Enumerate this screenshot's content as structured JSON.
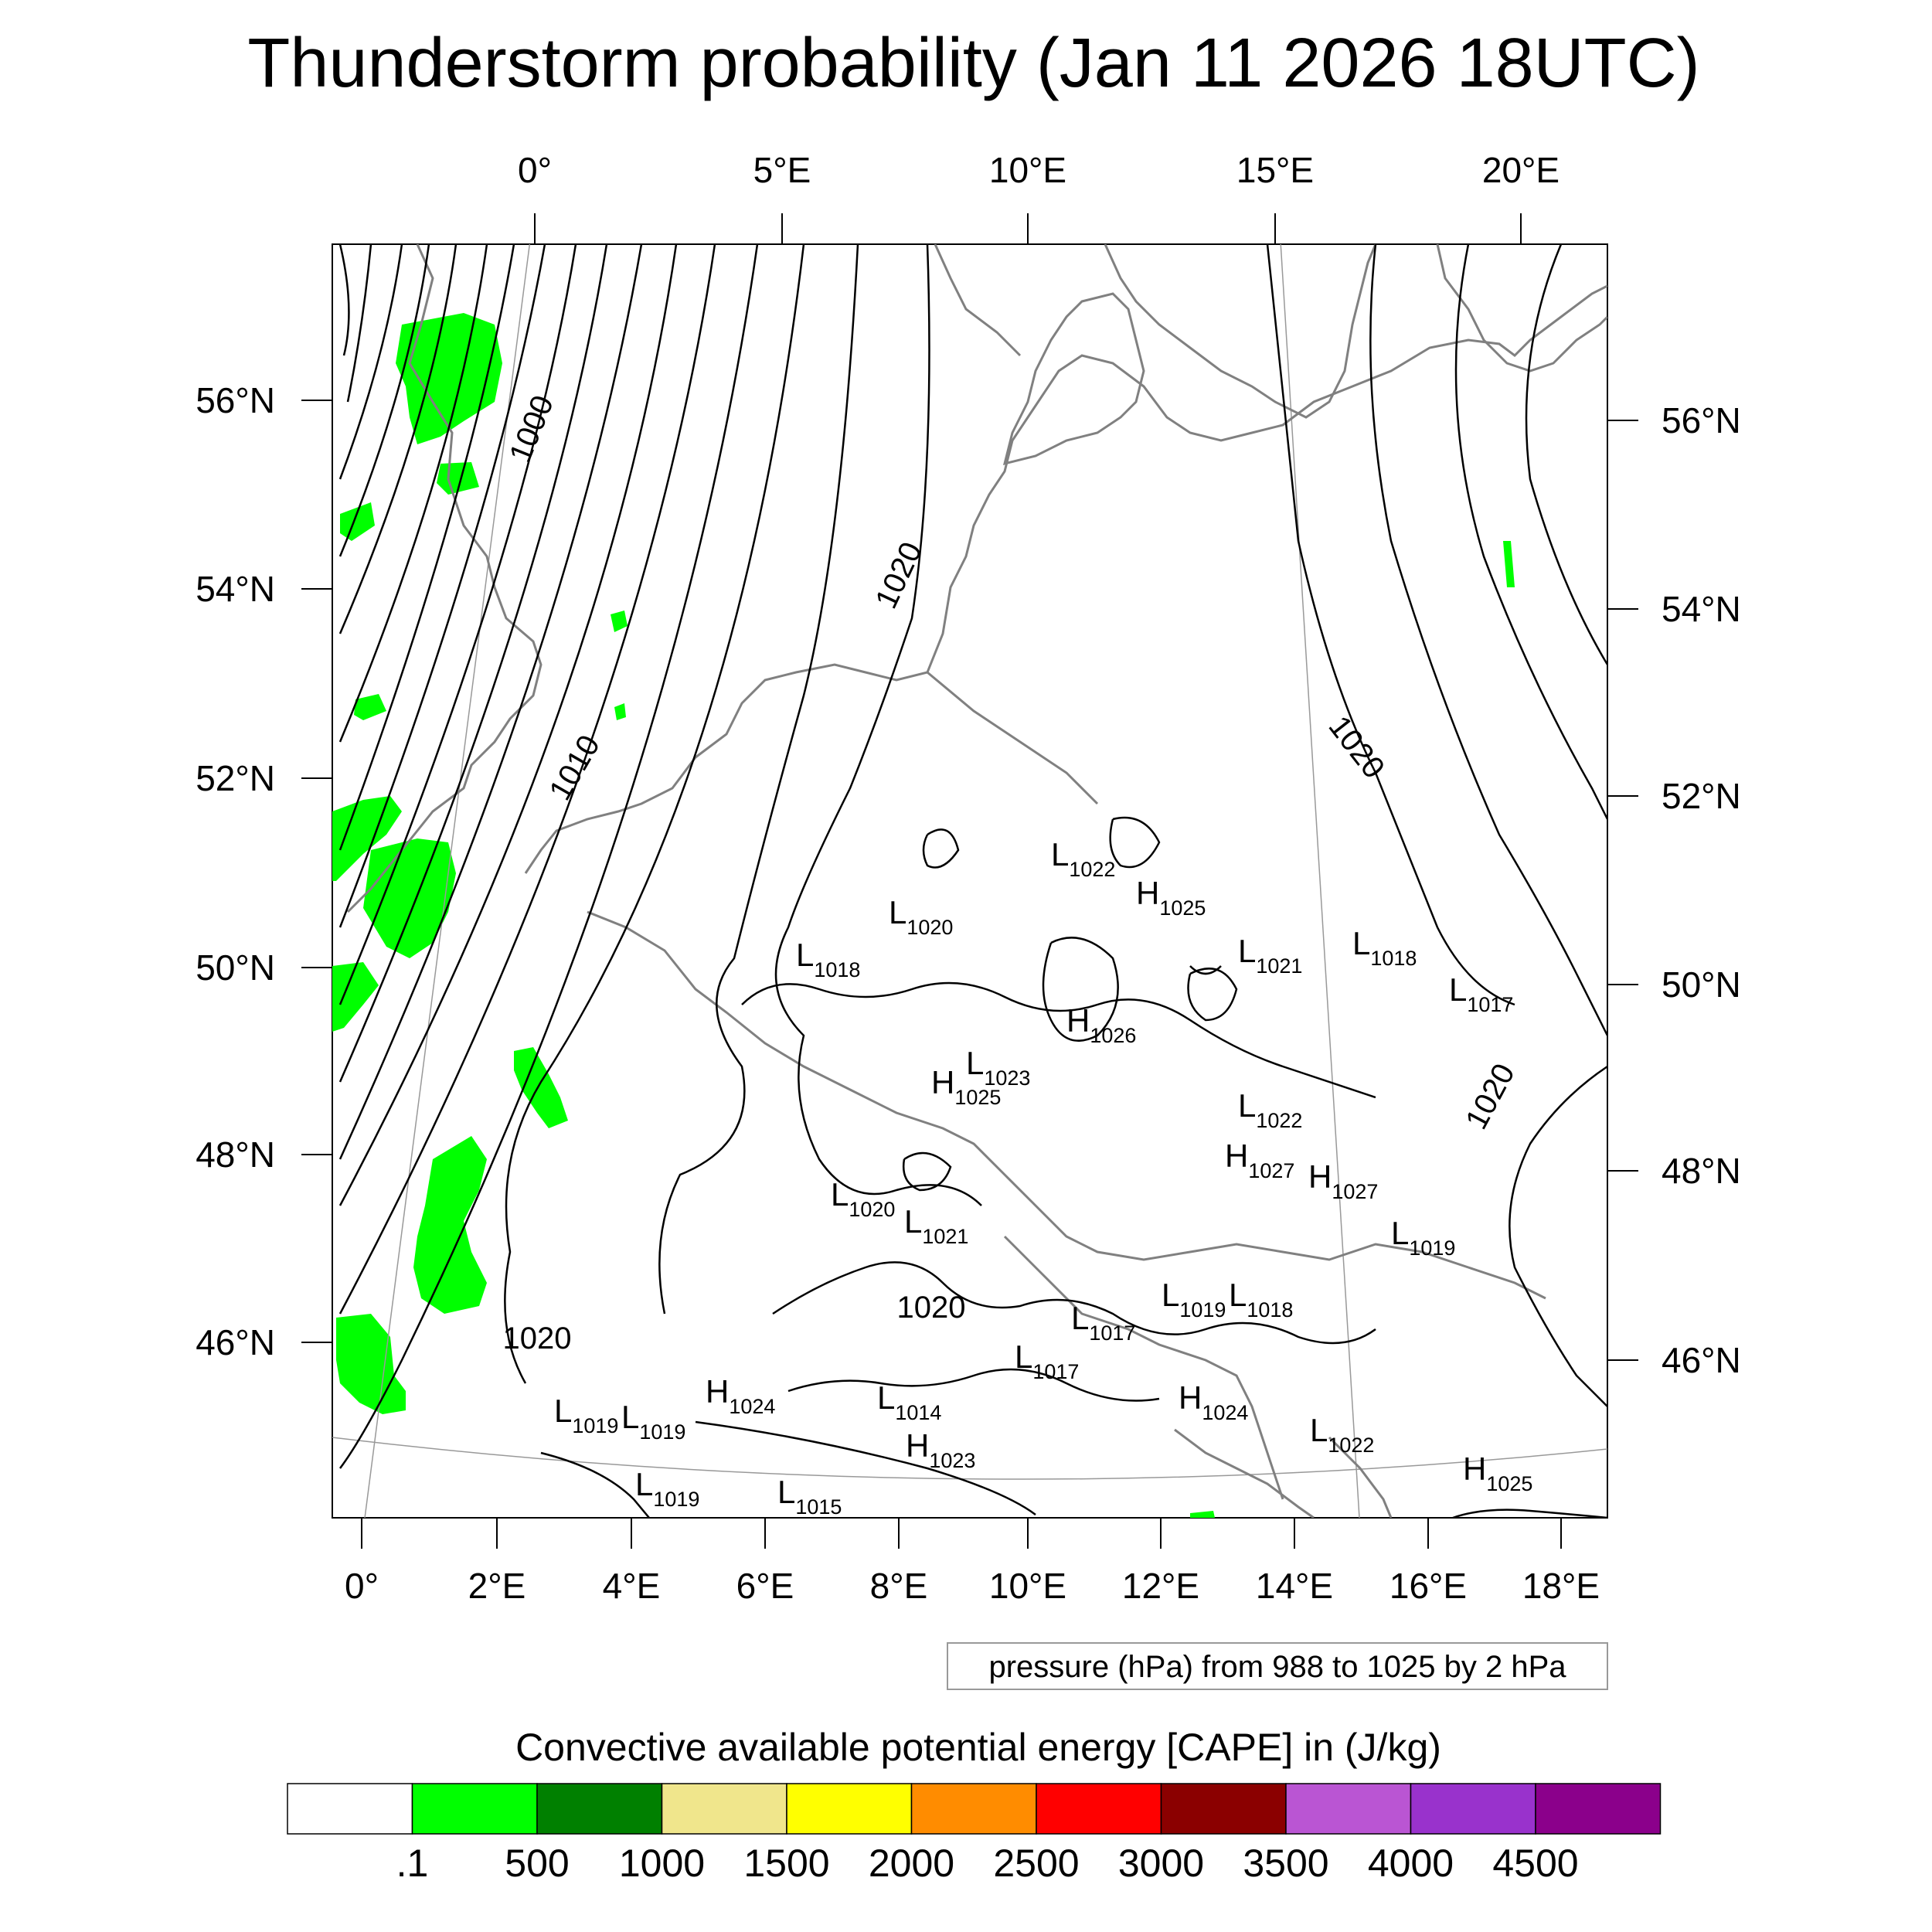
{
  "title": "Thunderstorm probability (Jan 11 2026 18UTC)",
  "top_lon_labels": [
    "0°",
    "5°E",
    "10°E",
    "15°E",
    "20°E"
  ],
  "bottom_lon_labels": [
    "0°",
    "2°E",
    "4°E",
    "6°E",
    "8°E",
    "10°E",
    "12°E",
    "14°E",
    "16°E",
    "18°E"
  ],
  "left_lat_labels": [
    "56°N",
    "54°N",
    "52°N",
    "50°N",
    "48°N",
    "46°N"
  ],
  "right_lat_labels": [
    "56°N",
    "54°N",
    "52°N",
    "50°N",
    "48°N",
    "46°N"
  ],
  "isobar_labels": [
    "1000",
    "1010",
    "1020",
    "1020",
    "1020",
    "1020",
    "1020"
  ],
  "pressure_centers": [
    {
      "type": "L",
      "value": "1022"
    },
    {
      "type": "H",
      "value": "1025"
    },
    {
      "type": "L",
      "value": "1020"
    },
    {
      "type": "L",
      "value": "1018"
    },
    {
      "type": "L",
      "value": "1021"
    },
    {
      "type": "L",
      "value": "1018"
    },
    {
      "type": "L",
      "value": "1017"
    },
    {
      "type": "H",
      "value": "1026"
    },
    {
      "type": "L",
      "value": "1023"
    },
    {
      "type": "H",
      "value": "1025"
    },
    {
      "type": "L",
      "value": "1022"
    },
    {
      "type": "H",
      "value": "1027"
    },
    {
      "type": "H",
      "value": "1027"
    },
    {
      "type": "L",
      "value": "1020"
    },
    {
      "type": "L",
      "value": "1021"
    },
    {
      "type": "L",
      "value": "1019"
    },
    {
      "type": "L",
      "value": "1017"
    },
    {
      "type": "L",
      "value": "1019"
    },
    {
      "type": "L",
      "value": "1018"
    },
    {
      "type": "L",
      "value": "1017"
    },
    {
      "type": "H",
      "value": "1024"
    },
    {
      "type": "L",
      "value": "1014"
    },
    {
      "type": "L",
      "value": "1019"
    },
    {
      "type": "L",
      "value": "1019"
    },
    {
      "type": "H",
      "value": "1024"
    },
    {
      "type": "H",
      "value": "1023"
    },
    {
      "type": "L",
      "value": "1019"
    },
    {
      "type": "L",
      "value": "1015"
    },
    {
      "type": "L",
      "value": "1022"
    },
    {
      "type": "H",
      "value": "1025"
    }
  ],
  "contour_note": "pressure (hPa) from 988 to 1025 by 2 hPa",
  "colorbar": {
    "title": "Convective available potential energy [CAPE] in (J/kg)",
    "colors": [
      "#ffffff",
      "#00ff00",
      "#008000",
      "#f0e68c",
      "#ffff00",
      "#ff8c00",
      "#ff0000",
      "#8b0000",
      "#ba55d3",
      "#9932cc",
      "#8b008b"
    ],
    "tick_labels": [
      ".1",
      "500",
      "1000",
      "1500",
      "2000",
      "2500",
      "3000",
      "3500",
      "4000",
      "4500"
    ]
  },
  "colors": {
    "cape_green": "#00ff00",
    "coastline": "#808080",
    "isobar": "#000000"
  }
}
